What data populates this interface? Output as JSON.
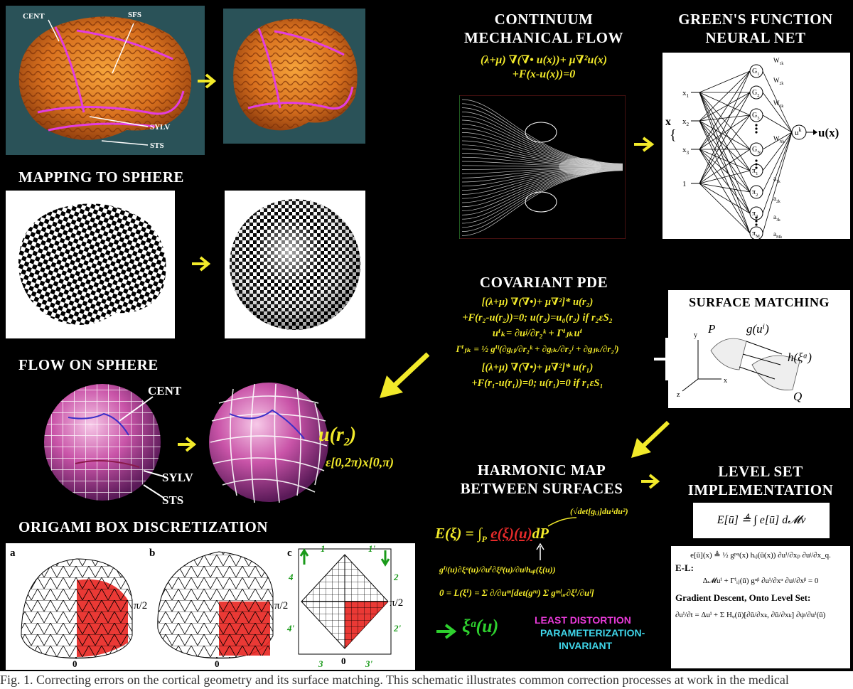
{
  "headings": {
    "continuum": [
      "CONTINUUM",
      "MECHANICAL FLOW"
    ],
    "greens": [
      "GREEN'S FUNCTION",
      "NEURAL NET"
    ],
    "mapping": "MAPPING TO SPHERE",
    "covariant": "COVARIANT PDE",
    "surface": "SURFACE MATCHING",
    "flow": "FLOW ON SPHERE",
    "harmonic": [
      "HARMONIC MAP",
      "BETWEEN SURFACES"
    ],
    "levelset": [
      "LEVEL SET",
      "IMPLEMENTATION"
    ],
    "origami": "ORIGAMI BOX DISCRETIZATION"
  },
  "brain_labels": {
    "cent": "CENT",
    "sfs": "SFS",
    "sylv": "SYLV",
    "sts": "STS"
  },
  "flow_labels": {
    "cent": "CENT",
    "sylv": "SYLV",
    "sts": "STS",
    "u": "u(r",
    "u_sub": "2",
    "u_close": ")",
    "range": "ε[0,2π)x[0,π)"
  },
  "continuum_eq": {
    "line1": "(λ+μ) ∇(∇• u(x))+ μ∇²u(x)",
    "line2": "+F(x-u(x))=0"
  },
  "nn": {
    "inputs": [
      "x",
      "x",
      "x",
      "1"
    ],
    "input_subs": [
      "1",
      "2",
      "3",
      ""
    ],
    "x_label": "x",
    "nodes_g": [
      "G",
      "G",
      "G",
      "G"
    ],
    "g_subs": [
      "1",
      "2",
      "3",
      "N"
    ],
    "nodes_pi": [
      "π",
      "π",
      "π",
      "π"
    ],
    "pi_subs": [
      "1",
      "2",
      "3",
      "M"
    ],
    "weights": [
      "W",
      "W",
      "W",
      "W"
    ],
    "w_subs": [
      "1k",
      "2k",
      "3k",
      "Nk"
    ],
    "a_labels": [
      "a",
      "a",
      "a",
      "a"
    ],
    "a_subs": [
      "1k",
      "2k",
      "3k",
      "Mk"
    ],
    "output_node": "u",
    "output_sup": "k",
    "output": "u(x)"
  },
  "covariant_eq": {
    "l1": "[(λ+μ) ∇(∇•)+ μ∇²]* u(r₂)",
    "l2": "+F(r₂-u(r₂))=0; u(r₂)=u₀(r₂) if r₂εS₂",
    "l3": "uⁱₖ= ∂uʲ/∂r₂ᵏ + Γⁱⱼₖuⁱ",
    "l4": "Γⁱⱼₖ = ½ gⁱˡ(∂gᵢⱼ/∂r₂ᵏ + ∂gᵢₖ/∂r₂ʲ + ∂gⱼₖ/∂r₂ˡ)",
    "l5": "[(λ+μ) ∇(∇•)+ μ∇²]* u(r₁)",
    "l6": "+F(r₁-u(r₁))=0; u(r₁)=0  if r₁εS₁"
  },
  "surface_labels": {
    "p": "P",
    "g": "g(uⁱ)",
    "h": "h(ξᵅ)",
    "q": "Q",
    "x": "x",
    "y": "y",
    "z": "z"
  },
  "harmonic_eq": {
    "e": "E(ξ) = ∫",
    "p_sub": "P",
    "red": "e(ξ)(u)",
    "dp": "dP",
    "sqrt": "(√det[gᵢⱼ]du¹du²)",
    "l2": "gⁱʲ(u)∂ξᵅ(u)/∂uⁱ∂ξᵝ(u)/∂uʲhₐᵦ(ξ(u))",
    "l3": "0 = L(ξⁱ) = Σ ∂/∂uᵐ[det(gʳᵘ) Σ gᵐˡᵤᵣ∂ξⁱ/∂uˡ]",
    "xi": "ξᵅ(u)",
    "least": "LEAST DISTORTION",
    "param1": "PARAMETERIZATION-",
    "param2": "INVARIANT"
  },
  "levelset_eq": {
    "energy": "E[ū] ≜ ∫ e[ū] d𝓜v",
    "e1": "e[ū](x) ≜ ½ gᵖᵠ(x) hᵢⱼ(ū(x)) ∂uⁱ/∂xₚ ∂uʲ/∂x_q.",
    "el": "E-L:",
    "e2": "Δ𝓜uⁱ + Γⁱᵢⱼ(ū) gᵅᵝ ∂uⁱ/∂xᵅ ∂uʲ/∂xᵝ = 0",
    "gd": "Gradient Descent, Onto Level Set:",
    "e3": "∂uⁱ/∂t = Δuⁱ + Σ Hᵩ(ū)[∂ū/∂xₖ, ∂ū/∂xₖ] ∂ψ/∂uⁱ(ū)"
  },
  "origami": {
    "a": "a",
    "b": "b",
    "c": "c",
    "pi2": "π/2",
    "zero": "0",
    "c_top1": "1",
    "c_top2": "1'",
    "c_left1": "4",
    "c_left2": "4'",
    "c_right1": "2",
    "c_right2": "2'",
    "c_bot1": "3",
    "c_bot2": "3'"
  },
  "caption": "Fig. 1. Correcting errors on the cortical geometry and its surface matching. This schematic illustrates common correction processes at work in the medical"
}
